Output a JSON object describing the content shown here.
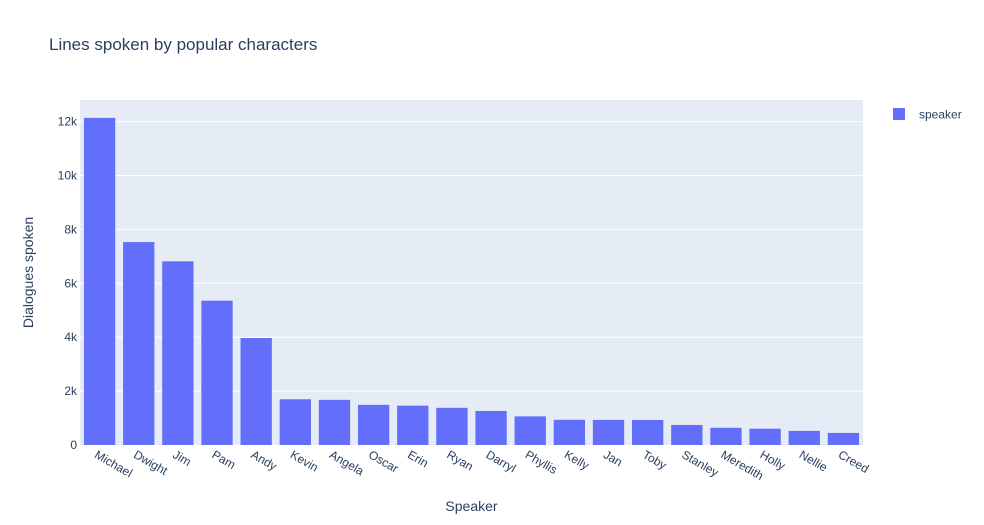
{
  "chart_data": {
    "type": "bar",
    "title": "Lines spoken by popular characters",
    "xlabel": "Speaker",
    "ylabel": "Dialogues spoken",
    "categories": [
      "Michael",
      "Dwight",
      "Jim",
      "Pam",
      "Andy",
      "Kevin",
      "Angela",
      "Oscar",
      "Erin",
      "Ryan",
      "Darryl",
      "Phyllis",
      "Kelly",
      "Jan",
      "Toby",
      "Stanley",
      "Meredith",
      "Holly",
      "Nellie",
      "Creed"
    ],
    "series": [
      {
        "name": "speaker",
        "values": [
          12137,
          7529,
          6814,
          5355,
          3968,
          1697,
          1675,
          1489,
          1459,
          1379,
          1263,
          1062,
          935,
          931,
          929,
          744,
          638,
          605,
          524,
          448
        ]
      }
    ],
    "ylim": [
      0,
      12800
    ],
    "yticks": [
      0,
      2000,
      4000,
      6000,
      8000,
      10000,
      12000
    ],
    "ytick_labels": [
      "0",
      "2k",
      "4k",
      "6k",
      "8k",
      "10k",
      "12k"
    ],
    "grid": true,
    "legend_position": "top-right",
    "colors": {
      "bar": "#636efa",
      "plot_bg": "#e5ecf6",
      "grid": "#ffffff",
      "text": "#2a3f5f"
    }
  }
}
